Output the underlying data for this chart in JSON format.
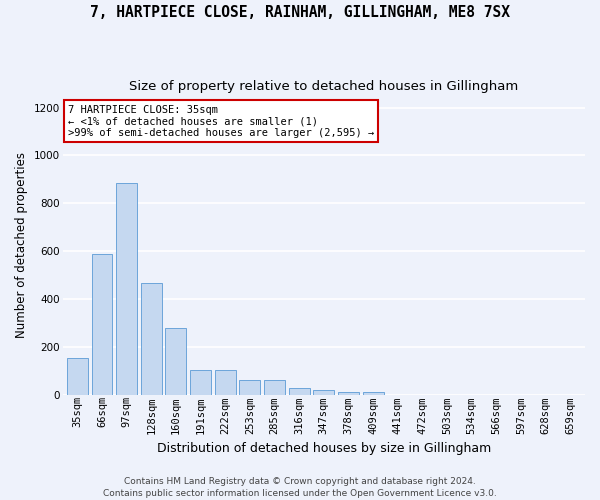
{
  "title_line1": "7, HARTPIECE CLOSE, RAINHAM, GILLINGHAM, ME8 7SX",
  "title_line2": "Size of property relative to detached houses in Gillingham",
  "xlabel": "Distribution of detached houses by size in Gillingham",
  "ylabel": "Number of detached properties",
  "categories": [
    "35sqm",
    "66sqm",
    "97sqm",
    "128sqm",
    "160sqm",
    "191sqm",
    "222sqm",
    "253sqm",
    "285sqm",
    "316sqm",
    "347sqm",
    "378sqm",
    "409sqm",
    "441sqm",
    "472sqm",
    "503sqm",
    "534sqm",
    "566sqm",
    "597sqm",
    "628sqm",
    "659sqm"
  ],
  "values": [
    155,
    590,
    885,
    465,
    280,
    103,
    103,
    60,
    60,
    28,
    20,
    13,
    13,
    0,
    0,
    0,
    0,
    0,
    0,
    0,
    0
  ],
  "bar_color": "#c5d8f0",
  "bar_edge_color": "#5b9bd5",
  "annotation_text": "7 HARTPIECE CLOSE: 35sqm\n← <1% of detached houses are smaller (1)\n>99% of semi-detached houses are larger (2,595) →",
  "annotation_box_color": "#ffffff",
  "annotation_box_edge_color": "#cc0000",
  "footer_line1": "Contains HM Land Registry data © Crown copyright and database right 2024.",
  "footer_line2": "Contains public sector information licensed under the Open Government Licence v3.0.",
  "ylim": [
    0,
    1250
  ],
  "yticks": [
    0,
    200,
    400,
    600,
    800,
    1000,
    1200
  ],
  "background_color": "#eef2fb",
  "grid_color": "#ffffff",
  "title_fontsize": 10.5,
  "subtitle_fontsize": 9.5,
  "xlabel_fontsize": 9,
  "ylabel_fontsize": 8.5,
  "tick_fontsize": 7.5,
  "annotation_fontsize": 7.5,
  "footer_fontsize": 6.5
}
